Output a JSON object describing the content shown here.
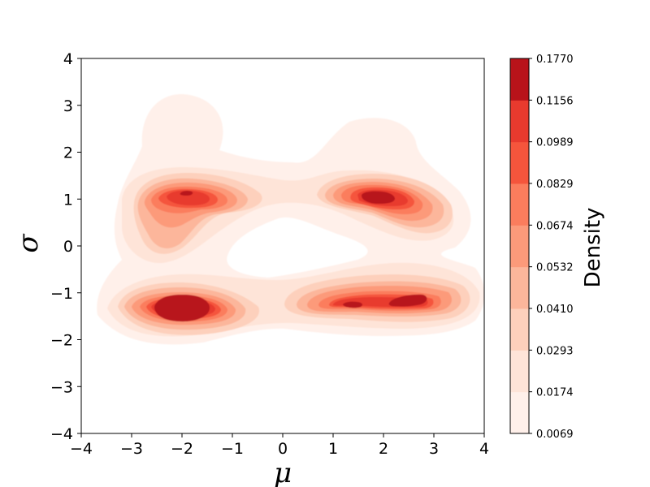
{
  "chart_data": {
    "type": "contour",
    "xlabel": "μ",
    "ylabel": "σ",
    "xlim": [
      -4,
      4
    ],
    "ylim": [
      -4,
      4
    ],
    "xticks": [
      "−4",
      "−3",
      "−2",
      "−1",
      "0",
      "1",
      "2",
      "3",
      "4"
    ],
    "yticks": [
      "−4",
      "−3",
      "−2",
      "−1",
      "0",
      "1",
      "2",
      "3",
      "4"
    ],
    "grid": false,
    "colormap": "Reds",
    "colorbar": {
      "label": "Density",
      "levels": [
        "0.0069",
        "0.0174",
        "0.0293",
        "0.0410",
        "0.0532",
        "0.0674",
        "0.0829",
        "0.0989",
        "0.1156",
        "0.1770"
      ],
      "colors": [
        "#fff0ea",
        "#fee4d8",
        "#fdd0bc",
        "#fcb69b",
        "#fc9a7a",
        "#fb7d5d",
        "#f5553c",
        "#e83a2e",
        "#b8131a"
      ]
    },
    "modes": [
      {
        "mu": -2.0,
        "sigma": 1.1,
        "peak": 0.12
      },
      {
        "mu": -2.0,
        "sigma": 0.3,
        "peak": 0.03
      },
      {
        "mu": -2.0,
        "sigma": 2.6,
        "peak": 0.012
      },
      {
        "mu": 1.9,
        "sigma": 1.0,
        "peak": 0.15
      },
      {
        "mu": 2.7,
        "sigma": 0.6,
        "peak": 0.03
      },
      {
        "mu": 1.8,
        "sigma": 2.2,
        "peak": 0.012
      },
      {
        "mu": -2.0,
        "sigma": -1.4,
        "peak": 0.17
      },
      {
        "mu": 1.4,
        "sigma": -1.25,
        "peak": 0.13
      },
      {
        "mu": 2.6,
        "sigma": -1.15,
        "peak": 0.14
      },
      {
        "mu": 0.0,
        "sigma": -1.3,
        "peak": 0.02
      },
      {
        "mu": 0.0,
        "sigma": 1.0,
        "peak": 0.015
      }
    ]
  }
}
